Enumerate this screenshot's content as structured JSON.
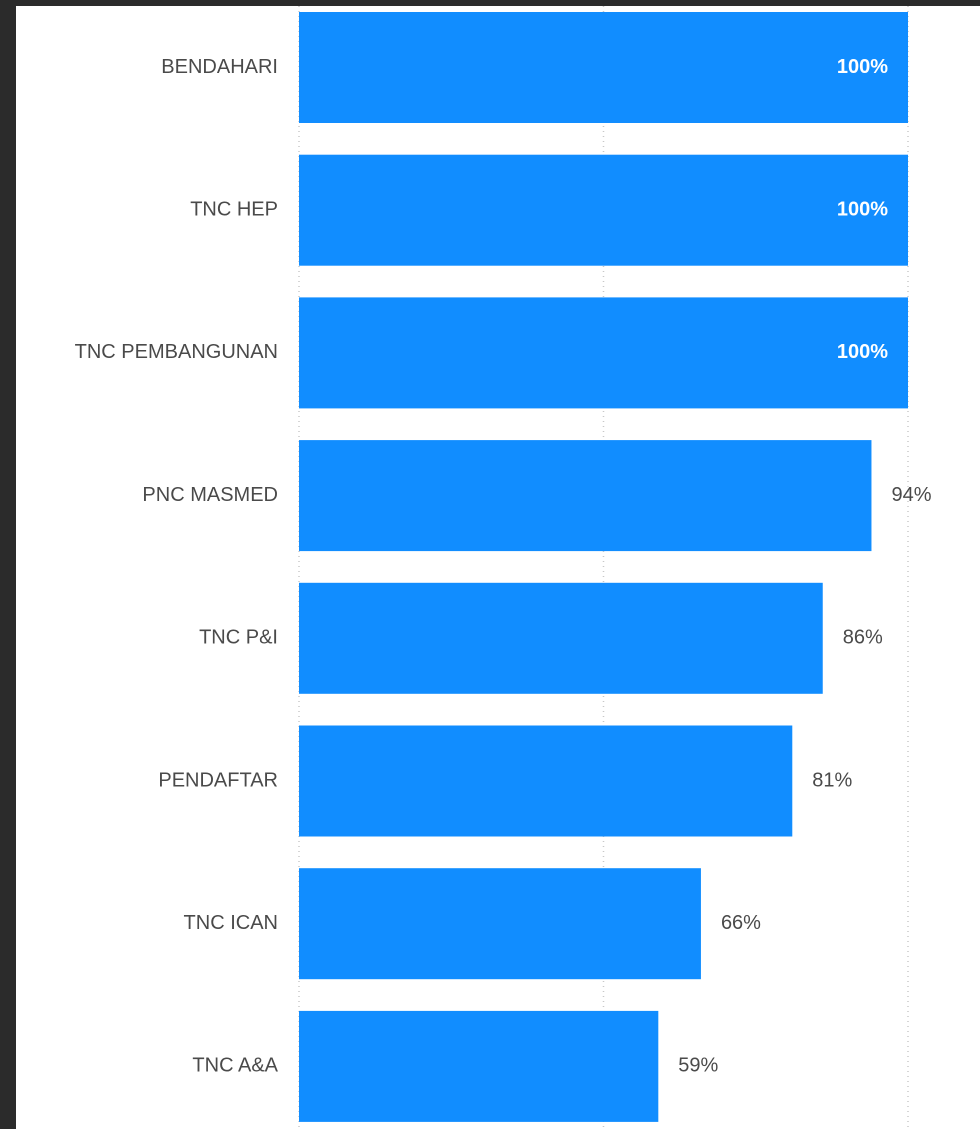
{
  "colors": {
    "background": "#2b2b2b",
    "panel": "#ffffff",
    "bar": "#118dff",
    "label": "#4a4a4a",
    "inside_value": "#ffffff"
  },
  "chart_data": {
    "type": "bar",
    "orientation": "horizontal",
    "categories": [
      "BENDAHARI",
      "TNC HEP",
      "TNC PEMBANGUNAN",
      "PNC MASMED",
      "TNC P&I",
      "PENDAFTAR",
      "TNC ICAN",
      "TNC A&A"
    ],
    "values": [
      100,
      100,
      100,
      94,
      86,
      81,
      66,
      59
    ],
    "value_labels": [
      "100%",
      "100%",
      "100%",
      "94%",
      "86%",
      "81%",
      "66%",
      "59%"
    ],
    "unit": "%",
    "xlim": [
      0,
      100
    ],
    "grid": true,
    "legend": "none"
  }
}
